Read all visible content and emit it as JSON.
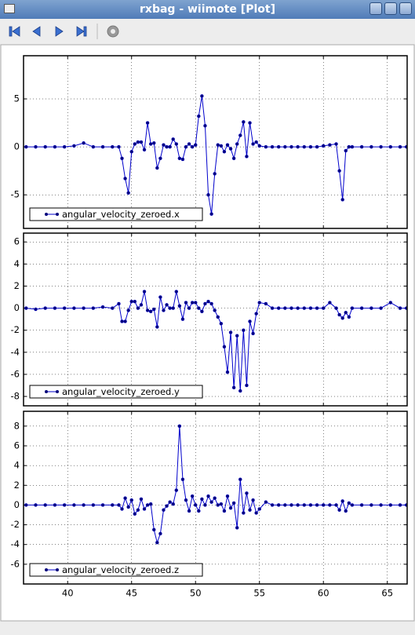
{
  "window": {
    "title": "rxbag - wiimote [Plot]"
  },
  "chart_data": [
    {
      "type": "line",
      "x": [
        36.75,
        37.5,
        38.25,
        39,
        39.75,
        40.5,
        41.25,
        42,
        42.75,
        43.5,
        44,
        44.25,
        44.5,
        44.75,
        45,
        45.25,
        45.5,
        45.75,
        46,
        46.25,
        46.5,
        46.75,
        47,
        47.25,
        47.5,
        47.75,
        48,
        48.25,
        48.5,
        48.75,
        49,
        49.25,
        49.5,
        49.75,
        50,
        50.25,
        50.5,
        50.75,
        51,
        51.25,
        51.5,
        51.75,
        52,
        52.25,
        52.5,
        52.75,
        53,
        53.25,
        53.5,
        53.75,
        54,
        54.25,
        54.5,
        54.75,
        55,
        55.5,
        56,
        56.5,
        57,
        57.5,
        58,
        58.5,
        59,
        59.5,
        60,
        60.5,
        61,
        61.25,
        61.5,
        61.75,
        62,
        62.25,
        63,
        63.75,
        64.5,
        65.25,
        66,
        66.5
      ],
      "series": [
        {
          "name": "angular_velocity_zeroed.x",
          "color": "#0000cc",
          "values": [
            0,
            0,
            0,
            0,
            0,
            0.1,
            0.4,
            0,
            0,
            0,
            0,
            -1.2,
            -3.3,
            -4.8,
            -0.5,
            0.3,
            0.5,
            0.5,
            -0.3,
            2.5,
            0.3,
            0.4,
            -2.2,
            -1.2,
            0.2,
            0,
            0,
            0.8,
            0.3,
            -1.2,
            -1.3,
            0,
            0.3,
            0,
            0.2,
            3.2,
            5.3,
            2.2,
            -5,
            -7,
            -2.8,
            0.2,
            0.1,
            -0.5,
            0.2,
            -0.2,
            -1.2,
            0.3,
            1.2,
            2.6,
            -1,
            2.5,
            0.3,
            0.5,
            0.1,
            0,
            0,
            0,
            0,
            0,
            0,
            0,
            0,
            0,
            0.1,
            0.2,
            0.3,
            -2.5,
            -5.5,
            -0.4,
            0,
            0,
            0,
            0,
            0,
            0,
            0,
            0
          ]
        }
      ],
      "xlim": [
        36.55,
        66.55
      ],
      "ylim": [
        -8.5,
        9.5
      ],
      "xticks": [
        40,
        45,
        50,
        55,
        60,
        65
      ],
      "yticks": [
        -5,
        0,
        5
      ],
      "grid": true,
      "legend": "lower left"
    },
    {
      "type": "line",
      "x": [
        36.75,
        37.5,
        38.25,
        39,
        39.75,
        40.5,
        41.25,
        42,
        42.75,
        43.5,
        44,
        44.25,
        44.5,
        44.75,
        45,
        45.25,
        45.5,
        45.75,
        46,
        46.25,
        46.5,
        46.75,
        47,
        47.25,
        47.5,
        47.75,
        48,
        48.25,
        48.5,
        48.75,
        49,
        49.25,
        49.5,
        49.75,
        50,
        50.25,
        50.5,
        50.75,
        51,
        51.25,
        51.5,
        51.75,
        52,
        52.25,
        52.5,
        52.75,
        53,
        53.25,
        53.5,
        53.75,
        54,
        54.25,
        54.5,
        54.75,
        55,
        55.5,
        56,
        56.5,
        57,
        57.5,
        58,
        58.5,
        59,
        59.5,
        60,
        60.5,
        61,
        61.25,
        61.5,
        61.75,
        62,
        62.25,
        63,
        63.75,
        64.5,
        65.25,
        66,
        66.5
      ],
      "series": [
        {
          "name": "angular_velocity_zeroed.y",
          "color": "#0000cc",
          "values": [
            0,
            -0.1,
            0,
            0,
            0,
            0,
            0,
            0,
            0.1,
            0,
            0.4,
            -1.2,
            -1.2,
            -0.2,
            0.6,
            0.6,
            0,
            0.3,
            1.5,
            -0.2,
            -0.3,
            -0.1,
            -1.7,
            1.0,
            -0.2,
            0.3,
            0,
            0,
            1.5,
            0.2,
            -1.0,
            0.5,
            0,
            0.5,
            0.5,
            0,
            -0.3,
            0.4,
            0.6,
            0.4,
            -0.2,
            -0.8,
            -1.4,
            -3.5,
            -5.8,
            -2.2,
            -7.2,
            -2.5,
            -7.5,
            -2.0,
            -7.0,
            -1.2,
            -2.3,
            -0.5,
            0.5,
            0.4,
            0,
            0,
            0,
            0,
            0,
            0,
            0,
            0,
            0,
            0.5,
            0,
            -0.6,
            -0.9,
            -0.4,
            -0.8,
            0,
            0,
            0,
            0,
            0.5,
            0,
            0
          ]
        }
      ],
      "xlim": [
        36.55,
        66.55
      ],
      "ylim": [
        -8.85,
        6.8
      ],
      "xticks": [
        40,
        45,
        50,
        55,
        60,
        65
      ],
      "yticks": [
        -8,
        -6,
        -4,
        -2,
        0,
        2,
        4,
        6
      ],
      "grid": true,
      "legend": "lower left"
    },
    {
      "type": "line",
      "x": [
        36.75,
        37.5,
        38.25,
        39,
        39.75,
        40.5,
        41.25,
        42,
        42.75,
        43.5,
        44,
        44.25,
        44.5,
        44.75,
        45,
        45.25,
        45.5,
        45.75,
        46,
        46.25,
        46.5,
        46.75,
        47,
        47.25,
        47.5,
        47.75,
        48,
        48.25,
        48.5,
        48.75,
        49,
        49.25,
        49.5,
        49.75,
        50,
        50.25,
        50.5,
        50.75,
        51,
        51.25,
        51.5,
        51.75,
        52,
        52.25,
        52.5,
        52.75,
        53,
        53.25,
        53.5,
        53.75,
        54,
        54.25,
        54.5,
        54.75,
        55,
        55.5,
        56,
        56.5,
        57,
        57.5,
        58,
        58.5,
        59,
        59.5,
        60,
        60.5,
        61,
        61.25,
        61.5,
        61.75,
        62,
        62.25,
        63,
        63.75,
        64.5,
        65.25,
        66,
        66.5
      ],
      "series": [
        {
          "name": "angular_velocity_zeroed.z",
          "color": "#0000cc",
          "values": [
            0,
            0,
            0,
            0,
            0,
            0,
            0,
            0,
            0,
            0,
            0,
            -0.4,
            0.7,
            -0.2,
            0.5,
            -0.9,
            -0.5,
            0.6,
            -0.4,
            0,
            0.1,
            -2.5,
            -3.8,
            -2.9,
            -0.5,
            -0.1,
            0.3,
            0.1,
            1.5,
            8,
            2.6,
            0.5,
            -0.6,
            0.9,
            0,
            -0.6,
            0.6,
            0,
            0.9,
            0.3,
            0.7,
            0,
            0.1,
            -0.6,
            0.9,
            -0.3,
            0.2,
            -2.3,
            2.6,
            -0.8,
            1.2,
            -0.5,
            0.5,
            -0.8,
            -0.4,
            0.3,
            0,
            0,
            0,
            0,
            0,
            0,
            0,
            0,
            0,
            0,
            0,
            -0.5,
            0.4,
            -0.6,
            0.2,
            0,
            0,
            0,
            0,
            0,
            0,
            0
          ]
        }
      ],
      "xlim": [
        36.55,
        66.55
      ],
      "ylim": [
        -8,
        9.5
      ],
      "xticks": [
        40,
        45,
        50,
        55,
        60,
        65
      ],
      "yticks": [
        -6,
        -4,
        -2,
        0,
        2,
        4,
        6,
        8
      ],
      "grid": true,
      "legend": "lower left"
    }
  ]
}
